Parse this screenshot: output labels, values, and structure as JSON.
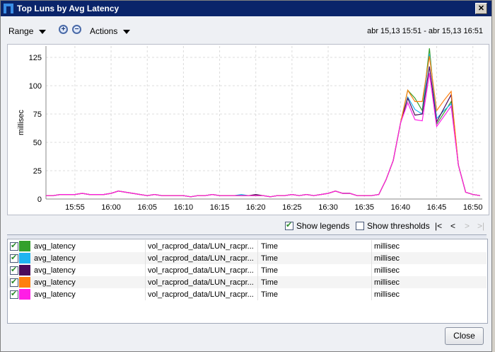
{
  "window": {
    "title": "Top Luns by Avg Latency",
    "close_icon": "close-icon"
  },
  "toolbar": {
    "range_label": "Range",
    "actions_label": "Actions",
    "zoom_in_icon": "zoom-in-icon",
    "zoom_out_icon": "zoom-out-icon",
    "date_range": "abr 15,13 15:51 - abr 15,13 16:51"
  },
  "chart_data": {
    "type": "line",
    "title": "",
    "xlabel": "",
    "ylabel": "millisec",
    "x_start": "15:51",
    "x_interval_min": 1,
    "xlim": [
      "15:51",
      "16:51"
    ],
    "ylim": [
      0,
      135
    ],
    "yticks": [
      0,
      25,
      50,
      75,
      100,
      125
    ],
    "xticks": [
      "15:55",
      "16:00",
      "16:05",
      "16:10",
      "16:15",
      "16:20",
      "16:25",
      "16:30",
      "16:35",
      "16:40",
      "16:45",
      "16:50"
    ],
    "grid": true,
    "series": [
      {
        "color": "#33a02c",
        "values": [
          3,
          3,
          4,
          4,
          4,
          5,
          4,
          4,
          4,
          5,
          7,
          6,
          5,
          4,
          3,
          4,
          3,
          3,
          3,
          3,
          2,
          3,
          3,
          4,
          3,
          3,
          3,
          3,
          3,
          3,
          3,
          2,
          3,
          3,
          4,
          3,
          4,
          3,
          4,
          5,
          7,
          5,
          5,
          3,
          3,
          3,
          4,
          17,
          34,
          67,
          96,
          89,
          78,
          133,
          66,
          76,
          86,
          30,
          6,
          4,
          3
        ]
      },
      {
        "color": "#1fb4f0",
        "values": [
          3,
          3,
          4,
          4,
          4,
          5,
          4,
          4,
          4,
          5,
          7,
          6,
          5,
          4,
          3,
          4,
          3,
          3,
          3,
          3,
          2,
          3,
          3,
          4,
          3,
          3,
          3,
          4,
          3,
          3,
          3,
          2,
          3,
          3,
          4,
          3,
          4,
          3,
          4,
          5,
          7,
          5,
          5,
          3,
          3,
          3,
          4,
          17,
          34,
          67,
          90,
          79,
          75,
          128,
          71,
          78,
          84,
          30,
          6,
          4,
          3
        ]
      },
      {
        "color": "#4b0a5a",
        "values": [
          3,
          3,
          4,
          4,
          4,
          5,
          4,
          4,
          4,
          5,
          7,
          6,
          5,
          4,
          3,
          4,
          3,
          3,
          3,
          3,
          2,
          3,
          3,
          4,
          3,
          3,
          3,
          3,
          3,
          4,
          3,
          2,
          3,
          3,
          4,
          3,
          4,
          3,
          4,
          5,
          7,
          5,
          5,
          3,
          3,
          3,
          4,
          17,
          34,
          67,
          89,
          74,
          75,
          117,
          68,
          80,
          92,
          30,
          6,
          4,
          3
        ]
      },
      {
        "color": "#ff7f0e",
        "values": [
          3,
          3,
          4,
          4,
          4,
          5,
          4,
          4,
          4,
          5,
          7,
          6,
          5,
          4,
          3,
          4,
          3,
          3,
          3,
          3,
          2,
          3,
          3,
          4,
          3,
          3,
          3,
          3,
          3,
          3,
          3,
          2,
          3,
          3,
          4,
          3,
          4,
          3,
          4,
          5,
          7,
          5,
          5,
          3,
          3,
          3,
          4,
          17,
          34,
          67,
          96,
          86,
          86,
          126,
          78,
          87,
          95,
          30,
          6,
          4,
          3
        ]
      },
      {
        "color": "#ff1ee6",
        "values": [
          3,
          3,
          4,
          4,
          4,
          5,
          4,
          4,
          4,
          5,
          7,
          6,
          5,
          4,
          3,
          4,
          3,
          3,
          3,
          3,
          2,
          3,
          3,
          4,
          3,
          3,
          3,
          3,
          3,
          3,
          3,
          2,
          3,
          3,
          4,
          3,
          4,
          3,
          4,
          5,
          7,
          5,
          5,
          3,
          3,
          3,
          4,
          17,
          34,
          67,
          85,
          70,
          69,
          111,
          64,
          73,
          82,
          30,
          6,
          4,
          3
        ]
      }
    ]
  },
  "legend_controls": {
    "show_legends_label": "Show legends",
    "show_legends": true,
    "show_thresholds_label": "Show thresholds",
    "show_thresholds": false,
    "first": "|<",
    "prev": "<",
    "next": ">",
    "last": ">|"
  },
  "legend_rows": [
    {
      "checked": true,
      "color": "#33a02c",
      "metric": "avg_latency",
      "object": "vol_racprod_data/LUN_racpr...",
      "type": "Time",
      "unit": "millisec"
    },
    {
      "checked": true,
      "color": "#1fb4f0",
      "metric": "avg_latency",
      "object": "vol_racprod_data/LUN_racpr...",
      "type": "Time",
      "unit": "millisec"
    },
    {
      "checked": true,
      "color": "#4b0a5a",
      "metric": "avg_latency",
      "object": "vol_racprod_data/LUN_racpr...",
      "type": "Time",
      "unit": "millisec"
    },
    {
      "checked": true,
      "color": "#ff7f0e",
      "metric": "avg_latency",
      "object": "vol_racprod_data/LUN_racpr...",
      "type": "Time",
      "unit": "millisec"
    },
    {
      "checked": true,
      "color": "#ff1ee6",
      "metric": "avg_latency",
      "object": "vol_racprod_data/LUN_racpr...",
      "type": "Time",
      "unit": "millisec"
    }
  ],
  "footer": {
    "close_label": "Close"
  }
}
